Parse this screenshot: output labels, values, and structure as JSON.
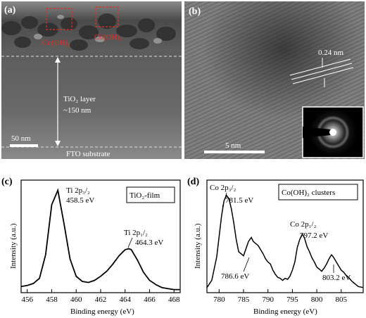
{
  "panels": {
    "a": {
      "label": "(a)",
      "cluster_left": "Co(OH)₂",
      "cluster_right": "Co(OH)₂",
      "layer_name": "TiO₂ layer",
      "layer_thickness": "~150 nm",
      "scale_bar": "50 nm",
      "substrate": "FTO substrate"
    },
    "b": {
      "label": "(b)",
      "lattice_spacing": "0.24 nm",
      "scale_bar": "5 nm"
    },
    "c": {
      "label": "(c)",
      "legend": "TiO₂-film",
      "peak1_name": "Ti 2p₃/₂",
      "peak1_energy": "458.5 eV",
      "peak2_name": "Ti 2p₁/₂",
      "peak2_energy": "464.3 eV"
    },
    "d": {
      "label": "(d)",
      "legend": "Co(OH)₂ clusters",
      "peak1_name": "Co 2p₃/₂",
      "peak1_energy": "781.5 eV",
      "peak2_name": "Co 2p₁/₂",
      "peak2_energy": "797.2 eV",
      "sat1_energy": "786.6 eV",
      "sat2_energy": "803.2 eV"
    }
  },
  "chart_data": [
    {
      "type": "line",
      "panel": "c",
      "xlabel": "Binding energy (eV)",
      "ylabel": "Intensity (a.u.)",
      "xlim": [
        455.5,
        468.5
      ],
      "xticks": [
        456,
        458,
        460,
        462,
        464,
        466,
        468
      ],
      "x": [
        455.5,
        456,
        456.5,
        457,
        457.5,
        458,
        458.5,
        459,
        459.5,
        460,
        460.5,
        461,
        461.5,
        462,
        462.5,
        463,
        463.5,
        464,
        464.3,
        464.5,
        465,
        465.5,
        466,
        466.5,
        467,
        467.5,
        468,
        468.5
      ],
      "y": [
        0.06,
        0.07,
        0.09,
        0.14,
        0.37,
        0.86,
        1.0,
        0.68,
        0.33,
        0.16,
        0.11,
        0.1,
        0.12,
        0.16,
        0.21,
        0.28,
        0.36,
        0.42,
        0.43,
        0.42,
        0.32,
        0.2,
        0.12,
        0.08,
        0.05,
        0.04,
        0.03,
        0.03
      ],
      "y_range": [
        0,
        1.1
      ]
    },
    {
      "type": "line",
      "panel": "d",
      "xlabel": "Binding energy (eV)",
      "ylabel": "Intensity (a.u.)",
      "xlim": [
        777.5,
        809.5
      ],
      "xticks": [
        780,
        785,
        790,
        795,
        800,
        805
      ],
      "x": [
        777.5,
        778.5,
        779.5,
        780.5,
        781,
        781.5,
        782,
        782.5,
        783,
        783.5,
        784,
        784.5,
        785,
        785.5,
        786,
        786.6,
        787,
        787.5,
        788,
        788.5,
        789,
        789.5,
        790,
        790.5,
        791,
        791.5,
        792,
        792.5,
        793,
        793.5,
        794,
        794.5,
        795,
        795.5,
        796,
        796.5,
        797,
        797.2,
        797.5,
        798,
        798.5,
        799,
        799.5,
        800,
        800.5,
        801,
        801.5,
        802,
        802.5,
        803,
        803.2,
        803.5,
        804,
        804.5,
        805,
        805.5,
        806,
        806.5,
        807,
        807.5,
        808,
        808.5,
        809.5
      ],
      "y": [
        0.05,
        0.12,
        0.35,
        0.75,
        0.9,
        0.95,
        0.92,
        0.82,
        0.68,
        0.52,
        0.4,
        0.38,
        0.36,
        0.43,
        0.5,
        0.54,
        0.5,
        0.48,
        0.46,
        0.42,
        0.38,
        0.33,
        0.3,
        0.28,
        0.22,
        0.18,
        0.15,
        0.14,
        0.12,
        0.14,
        0.13,
        0.16,
        0.22,
        0.3,
        0.44,
        0.52,
        0.57,
        0.56,
        0.53,
        0.45,
        0.4,
        0.34,
        0.3,
        0.25,
        0.23,
        0.21,
        0.24,
        0.28,
        0.33,
        0.37,
        0.36,
        0.34,
        0.3,
        0.26,
        0.22,
        0.2,
        0.17,
        0.15,
        0.12,
        0.1,
        0.08,
        0.06,
        0.05
      ],
      "y_range": [
        0,
        1.1
      ]
    }
  ]
}
